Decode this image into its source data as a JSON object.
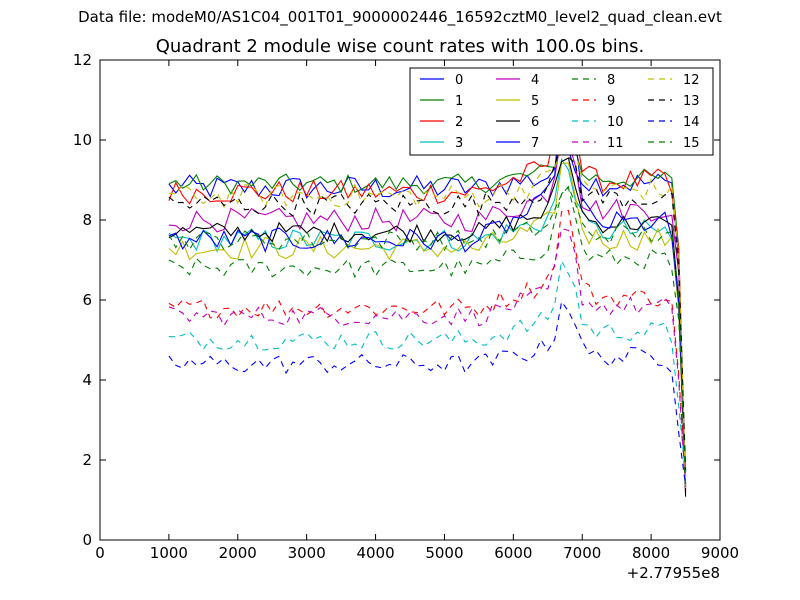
{
  "figure": {
    "suptitle": "Data file: modeM0/AS1C04_001T01_9000002446_16592cztM0_level2_quad_clean.evt",
    "title": "Quadrant 2 module wise count rates with 100.0s bins."
  },
  "chart_data": {
    "type": "line",
    "title": "Quadrant 2 module wise count rates with 100.0s bins.",
    "xlabel": "",
    "ylabel": "",
    "x_offset_label": "+2.77955e8",
    "xlim": [
      0,
      9000
    ],
    "ylim": [
      0,
      12
    ],
    "xticks": [
      0,
      1000,
      2000,
      3000,
      4000,
      5000,
      6000,
      7000,
      8000,
      9000
    ],
    "yticks": [
      0,
      2,
      4,
      6,
      8,
      10,
      12
    ],
    "grid": false,
    "legend_position": "top-right",
    "x_range": [
      1000,
      8500
    ],
    "bin_width": 100,
    "series": [
      {
        "name": "0",
        "color": "#0000ff",
        "dash": "solid",
        "base": 8.8,
        "peak": 1.0,
        "noise": 0.32
      },
      {
        "name": "1",
        "color": "#008000",
        "dash": "solid",
        "base": 8.9,
        "peak": 1.1,
        "noise": 0.25
      },
      {
        "name": "2",
        "color": "#ff0000",
        "dash": "solid",
        "base": 8.7,
        "peak": 2.3,
        "noise": 0.3
      },
      {
        "name": "3",
        "color": "#00bfbf",
        "dash": "solid",
        "base": 7.5,
        "peak": 1.8,
        "noise": 0.3
      },
      {
        "name": "4",
        "color": "#bf00bf",
        "dash": "solid",
        "base": 8.0,
        "peak": 2.2,
        "noise": 0.3
      },
      {
        "name": "5",
        "color": "#bfbf00",
        "dash": "solid",
        "base": 7.3,
        "peak": 2.0,
        "noise": 0.3
      },
      {
        "name": "6",
        "color": "#000000",
        "dash": "solid",
        "base": 7.7,
        "peak": 1.8,
        "noise": 0.25
      },
      {
        "name": "7",
        "color": "#0000ff",
        "dash": "solid",
        "base": 7.5,
        "peak": 3.5,
        "noise": 0.3
      },
      {
        "name": "8",
        "color": "#008000",
        "dash": "dashed",
        "base": 6.8,
        "peak": 1.9,
        "noise": 0.25
      },
      {
        "name": "9",
        "color": "#ff0000",
        "dash": "dashed",
        "base": 5.8,
        "peak": 2.3,
        "noise": 0.25
      },
      {
        "name": "10",
        "color": "#00bfbf",
        "dash": "dashed",
        "base": 5.0,
        "peak": 1.8,
        "noise": 0.25
      },
      {
        "name": "11",
        "color": "#bf00bf",
        "dash": "dashed",
        "base": 5.6,
        "peak": 2.0,
        "noise": 0.25
      },
      {
        "name": "12",
        "color": "#bfbf00",
        "dash": "dashed",
        "base": 8.6,
        "peak": 1.3,
        "noise": 0.3
      },
      {
        "name": "13",
        "color": "#000000",
        "dash": "dashed",
        "base": 8.4,
        "peak": 1.3,
        "noise": 0.3
      },
      {
        "name": "14",
        "color": "#0000ff",
        "dash": "dashed",
        "base": 4.4,
        "peak": 1.5,
        "noise": 0.25
      },
      {
        "name": "15",
        "color": "#008000",
        "dash": "dashed",
        "base": 7.5,
        "peak": 1.2,
        "noise": 0.25
      }
    ]
  }
}
